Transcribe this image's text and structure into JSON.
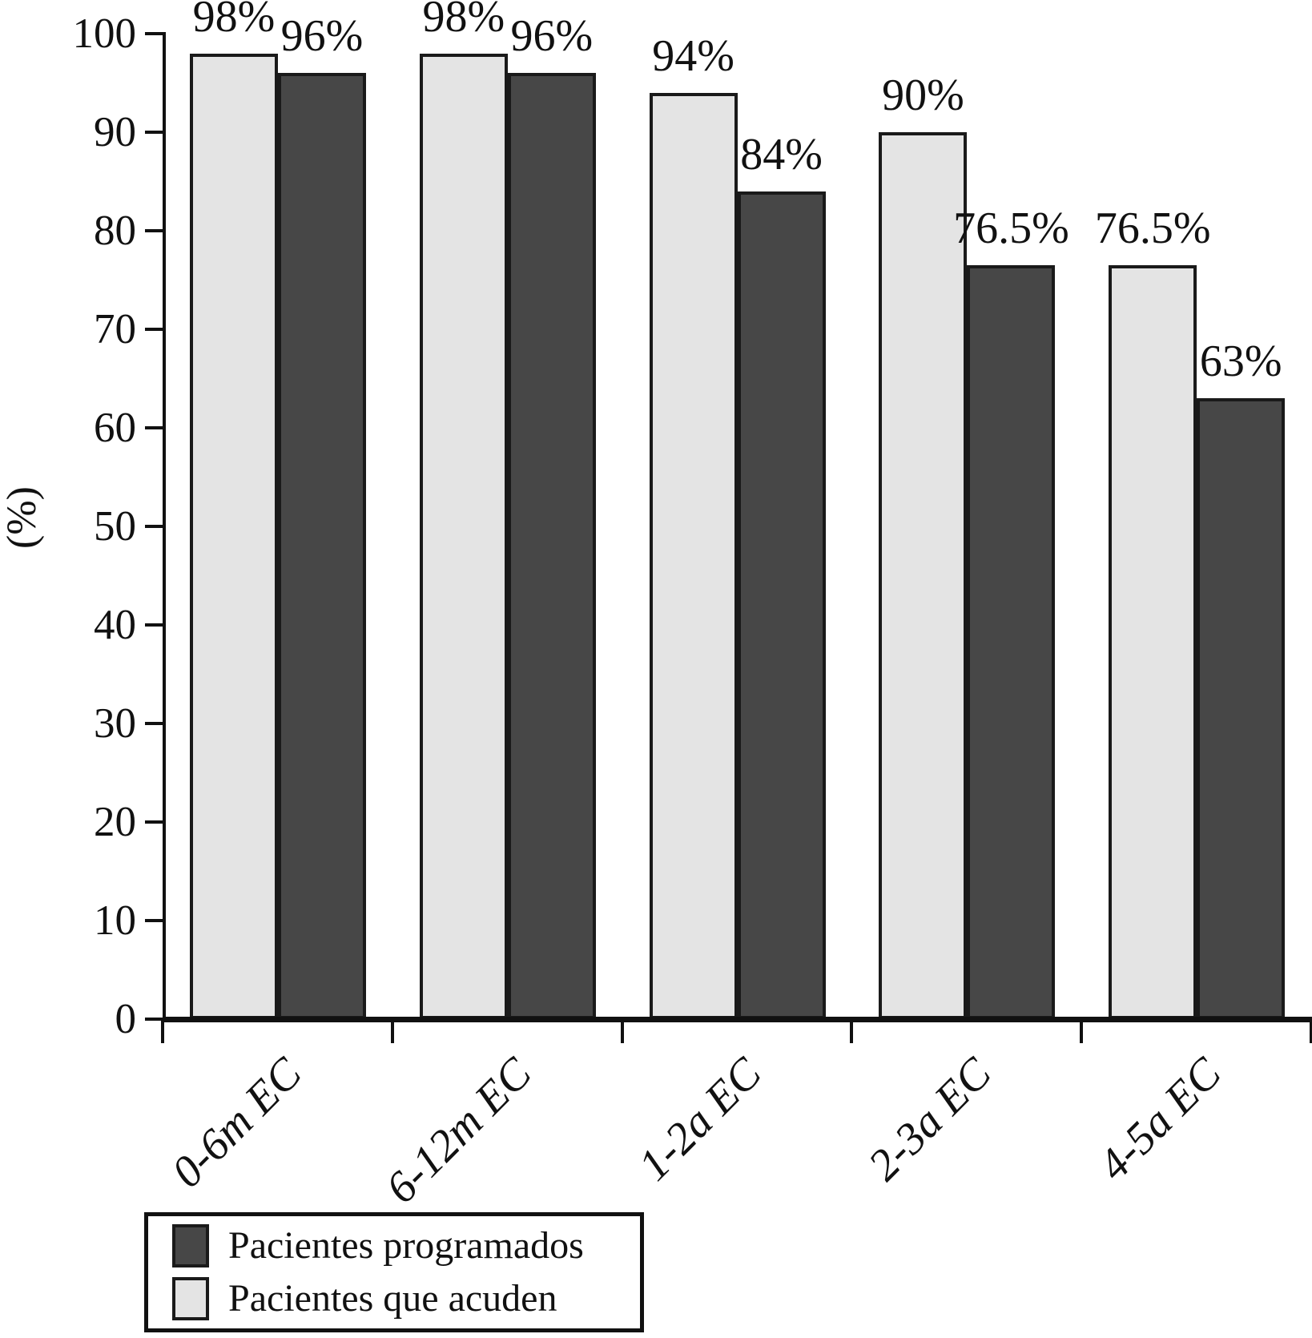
{
  "chart_data": {
    "type": "bar",
    "categories": [
      "0-6m EC",
      "6-12m EC",
      "1-2a EC",
      "2-3a EC",
      "4-5a EC"
    ],
    "series": [
      {
        "name": "Pacientes que acuden",
        "color_key": "light",
        "values": [
          98,
          98,
          94,
          90,
          76.5
        ],
        "labels": [
          "98%",
          "98%",
          "94%",
          "90%",
          "76.5%"
        ]
      },
      {
        "name": "Pacientes programados",
        "color_key": "dark",
        "values": [
          96,
          96,
          84,
          76.5,
          63
        ],
        "labels": [
          "96%",
          "96%",
          "84%",
          "76.5%",
          "63%"
        ]
      }
    ],
    "ylabel": "(%)",
    "ylim": [
      0,
      100
    ],
    "yticks": [
      0,
      10,
      20,
      30,
      40,
      50,
      60,
      70,
      80,
      90,
      100
    ],
    "grid": false,
    "legend_position": "bottom-left",
    "legend": [
      {
        "label": "Pacientes programados",
        "color_key": "dark"
      },
      {
        "label": "Pacientes que acuden",
        "color_key": "light"
      }
    ],
    "colors": {
      "light": "#e4e4e4",
      "dark": "#474747",
      "edge": "#1a1a1a",
      "axis": "#111111",
      "text": "#111111",
      "background": "#ffffff"
    }
  }
}
